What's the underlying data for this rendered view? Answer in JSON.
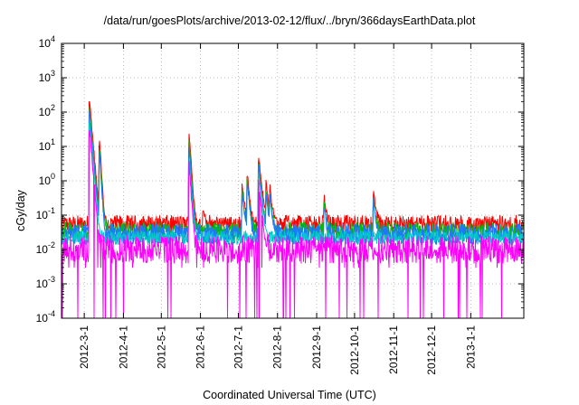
{
  "chart_data": {
    "type": "line",
    "title": "/data/run/goesPlots/archive/2013-02-12/flux/../bryn/366daysEarthData.plot",
    "xlabel": "Coordinated Universal Time (UTC)",
    "ylabel": "cGy/day",
    "yscale": "log",
    "ylim": [
      0.0001,
      10000
    ],
    "xlim": [
      "2012-02-12",
      "2013-02-12"
    ],
    "grid": true,
    "yticks": [
      {
        "base": "10",
        "exp": "-4"
      },
      {
        "base": "10",
        "exp": "-3"
      },
      {
        "base": "10",
        "exp": "-2"
      },
      {
        "base": "10",
        "exp": "-1"
      },
      {
        "base": "10",
        "exp": "0"
      },
      {
        "base": "10",
        "exp": "1"
      },
      {
        "base": "10",
        "exp": "2"
      },
      {
        "base": "10",
        "exp": "3"
      },
      {
        "base": "10",
        "exp": "4"
      }
    ],
    "xticks": [
      "2012-3-1",
      "2012-4-1",
      "2012-5-1",
      "2012-6-1",
      "2012-7-1",
      "2012-8-1",
      "2012-9-1",
      "2012-10-1",
      "2012-11-1",
      "2012-12-1",
      "2013-1-1"
    ],
    "series": [
      {
        "color": "#ff0000",
        "baseline": 0.055,
        "noise": 0.25,
        "events": [
          [
            22,
            270,
            1.0
          ],
          [
            30,
            18,
            0.7
          ],
          [
            101,
            28,
            0.8
          ],
          [
            112,
            0.12,
            1.0
          ],
          [
            143,
            0.9,
            1.0
          ],
          [
            147,
            1.8,
            1.0
          ],
          [
            156,
            6,
            1.2
          ],
          [
            162,
            1.0,
            1.0
          ],
          [
            165,
            0.7,
            1.0
          ],
          [
            208,
            0.28,
            1.0
          ],
          [
            247,
            0.6,
            1.0
          ]
        ]
      },
      {
        "color": "#00c000",
        "baseline": 0.035,
        "noise": 0.25,
        "events": [
          [
            22,
            160,
            1.0
          ],
          [
            30,
            10,
            0.7
          ],
          [
            101,
            15,
            0.8
          ],
          [
            143,
            0.6,
            1.0
          ],
          [
            147,
            1.2,
            1.0
          ],
          [
            156,
            3.5,
            1.2
          ],
          [
            162,
            0.6,
            1.0
          ],
          [
            165,
            0.4,
            1.0
          ],
          [
            208,
            0.18,
            1.0
          ],
          [
            247,
            0.35,
            1.0
          ]
        ]
      },
      {
        "color": "#1e78ff",
        "baseline": 0.028,
        "noise": 0.3,
        "events": [
          [
            22,
            120,
            1.0
          ],
          [
            30,
            8,
            0.7
          ],
          [
            101,
            10,
            0.8
          ],
          [
            143,
            0.5,
            1.0
          ],
          [
            147,
            1.0,
            1.0
          ],
          [
            156,
            3,
            1.2
          ],
          [
            162,
            0.5,
            1.0
          ],
          [
            165,
            0.35,
            1.0
          ],
          [
            208,
            0.15,
            1.0
          ],
          [
            247,
            0.3,
            1.0
          ]
        ]
      },
      {
        "color": "#00c8c8",
        "baseline": 0.022,
        "noise": 0.2,
        "events": [
          [
            22,
            60,
            1.0
          ],
          [
            101,
            5,
            0.8
          ],
          [
            156,
            1.5,
            1.2
          ]
        ]
      },
      {
        "color": "#ff00ff",
        "baseline": 0.01,
        "noise": 0.4,
        "events": [
          [
            22,
            40,
            1.0
          ],
          [
            101,
            3,
            0.8
          ],
          [
            156,
            1.0,
            1.2
          ]
        ]
      }
    ]
  }
}
